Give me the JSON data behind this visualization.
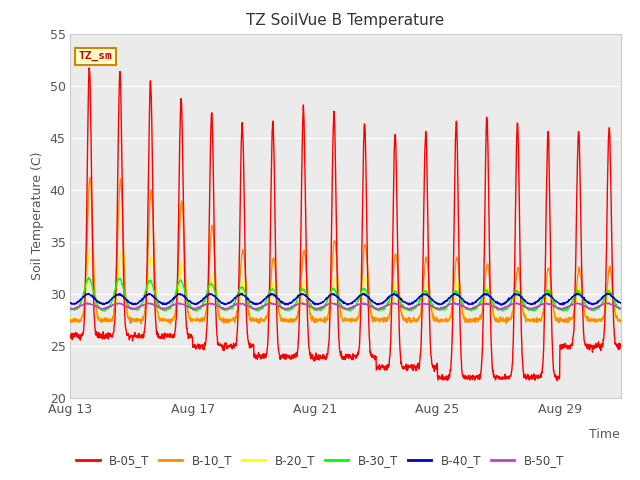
{
  "title": "TZ SoilVue B Temperature",
  "ylabel": "Soil Temperature (C)",
  "xlabel": "Time",
  "ylim": [
    20,
    55
  ],
  "bg_color": "#ffffff",
  "plot_bg_color": "#ebebeb",
  "series_colors": {
    "B-05_T": "#ff0000",
    "B-10_T": "#ff8c00",
    "B-20_T": "#ffff00",
    "B-30_T": "#00ff00",
    "B-40_T": "#0000cc",
    "B-50_T": "#bb44bb"
  },
  "annotation_label": "TZ_sm",
  "annotation_bg": "#ffffcc",
  "annotation_border": "#cc8800",
  "annotation_text_color": "#cc0000",
  "x_ticks_labels": [
    "Aug 13",
    "Aug 17",
    "Aug 21",
    "Aug 25",
    "Aug 29"
  ],
  "x_ticks_days": [
    0,
    4,
    8,
    12,
    16
  ],
  "y_ticks": [
    20,
    25,
    30,
    35,
    40,
    45,
    50,
    55
  ],
  "legend_labels": [
    "B-05_T",
    "B-10_T",
    "B-20_T",
    "B-30_T",
    "B-40_T",
    "B-50_T"
  ]
}
